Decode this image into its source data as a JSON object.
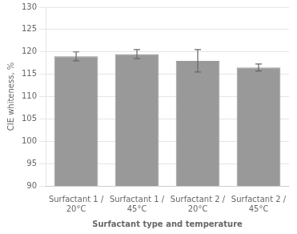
{
  "chart_data": {
    "type": "bar",
    "categories": [
      "Surfactant 1 /\n20°C",
      "Surfactant 1 /\n45°C",
      "Surfactant 2 /\n20°C",
      "Surfactant 2 /\n45°C"
    ],
    "values": [
      119.0,
      119.5,
      118.0,
      116.5
    ],
    "errors": [
      1.0,
      1.0,
      2.5,
      0.8
    ],
    "color": "#999999",
    "xlabel": "Surfactant type and temperature",
    "ylabel": "CIE whiteness, %",
    "ylim": [
      90,
      130
    ],
    "yticks": [
      90,
      95,
      100,
      105,
      110,
      115,
      120,
      125,
      130
    ],
    "grid": true
  }
}
